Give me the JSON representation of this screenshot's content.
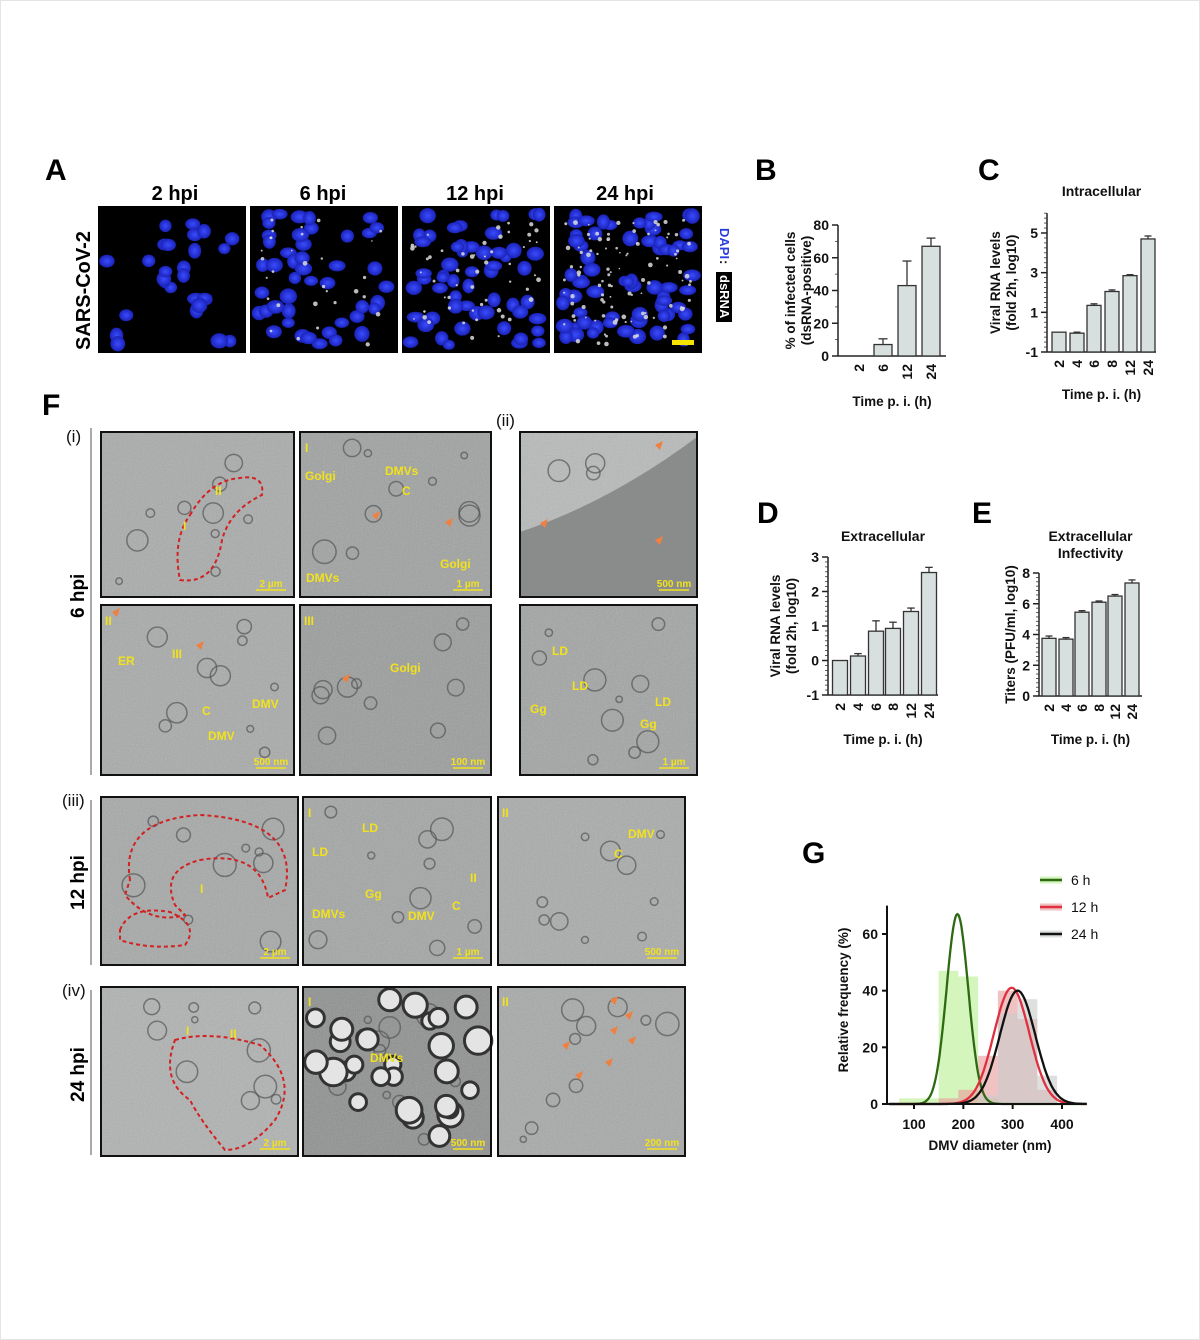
{
  "panel_labels": {
    "A": "A",
    "B": "B",
    "C": "C",
    "D": "D",
    "E": "E",
    "F": "F",
    "G": "G"
  },
  "panel_a": {
    "row_label": "SARS-CoV-2",
    "columns": [
      "2 hpi",
      "6 hpi",
      "12 hpi",
      "24 hpi"
    ],
    "stain_dapi": "DAPI",
    "stain_sep": " : ",
    "stain_dsrna": "dsRNA",
    "colors": {
      "dapi": "#1f2fd6",
      "dsrna": "#e8e8e8",
      "scalebar": "#f5e400"
    }
  },
  "panel_f": {
    "subpanels": [
      "(i)",
      "(ii)",
      "(iii)",
      "(iv)"
    ],
    "row_labels": [
      "6 hpi",
      "12 hpi",
      "24 hpi"
    ],
    "images": [
      {
        "id": "i-overview",
        "labels": [
          "II",
          "I"
        ],
        "scale": "2 µm"
      },
      {
        "id": "i-I",
        "labels": [
          "I",
          "Golgi",
          "DMVs",
          "C",
          "DMVs",
          "Golgi"
        ],
        "scale": "1 µm"
      },
      {
        "id": "ii-top",
        "labels": [],
        "scale": "500 nm"
      },
      {
        "id": "i-II",
        "labels": [
          "II",
          "ER",
          "III",
          "C",
          "DMV",
          "DMV"
        ],
        "scale": "500 nm"
      },
      {
        "id": "i-III",
        "labels": [
          "III",
          "Golgi"
        ],
        "scale": "100 nm"
      },
      {
        "id": "ii-bottom",
        "labels": [
          "LD",
          "LD",
          "Gg",
          "LD",
          "Gg"
        ],
        "scale": "1 µm"
      },
      {
        "id": "iii-overview",
        "labels": [
          "I"
        ],
        "scale": "2 µm"
      },
      {
        "id": "iii-I",
        "labels": [
          "I",
          "LD",
          "LD",
          "Gg",
          "DMVs",
          "DMV",
          "C",
          "II"
        ],
        "scale": "1 µm"
      },
      {
        "id": "iii-II",
        "labels": [
          "II",
          "DMV",
          "C"
        ],
        "scale": "500 nm"
      },
      {
        "id": "iv-overview",
        "labels": [
          "II",
          "I"
        ],
        "scale": "2 µm"
      },
      {
        "id": "iv-I",
        "labels": [
          "I",
          "DMVs"
        ],
        "scale": "500 nm"
      },
      {
        "id": "iv-II",
        "labels": [
          "II"
        ],
        "scale": "200 nm"
      }
    ],
    "colors": {
      "annotation": "#f2e21b",
      "arrowhead": "#f08040",
      "outline": "#d42020"
    }
  },
  "chart_data": [
    {
      "panel": "B",
      "type": "bar",
      "title": "",
      "xlabel": "Time p. i. (h)",
      "ylabel": "% of infected cells\n(dsRNA-positive)",
      "categories": [
        "2",
        "6",
        "12",
        "24"
      ],
      "values": [
        0,
        7,
        43,
        67
      ],
      "errors": [
        0,
        3.5,
        15,
        5
      ],
      "ylim": [
        0,
        80
      ],
      "yticks": [
        "0",
        "20",
        "40",
        "60",
        "80"
      ],
      "bar_color": "#d8dfdf"
    },
    {
      "panel": "C",
      "type": "bar",
      "title": "Intracellular",
      "xlabel": "Time p. i. (h)",
      "ylabel": "Viral RNA levels\n(fold 2h, log10)",
      "categories": [
        "2",
        "4",
        "6",
        "8",
        "12",
        "24"
      ],
      "values": [
        0,
        -0.05,
        1.35,
        2.05,
        2.85,
        4.7
      ],
      "errors": [
        0,
        0.05,
        0.08,
        0.08,
        0.05,
        0.15
      ],
      "ylim": [
        -1,
        6
      ],
      "yticks": [
        "-1",
        "1",
        "3",
        "5"
      ],
      "bar_color": "#d8dfdf"
    },
    {
      "panel": "D",
      "type": "bar",
      "title": "Extracellular",
      "xlabel": "Time p. i. (h)",
      "ylabel": "Viral RNA levels\n(fold 2h, log10)",
      "categories": [
        "2",
        "4",
        "6",
        "8",
        "12",
        "24"
      ],
      "values": [
        0,
        0.13,
        0.85,
        0.93,
        1.42,
        2.55
      ],
      "errors": [
        0,
        0.07,
        0.3,
        0.18,
        0.1,
        0.15
      ],
      "ylim": [
        -1,
        3
      ],
      "yticks": [
        "-1",
        "0",
        "1",
        "2",
        "3"
      ],
      "bar_color": "#d8dfdf"
    },
    {
      "panel": "E",
      "type": "bar",
      "title": "Extracellular\nInfectivity",
      "xlabel": "Time p. i. (h)",
      "ylabel": "Titers (PFU/ml, log10)",
      "categories": [
        "2",
        "4",
        "6",
        "8",
        "12",
        "24"
      ],
      "values": [
        3.75,
        3.7,
        5.45,
        6.1,
        6.5,
        7.35
      ],
      "errors": [
        0.15,
        0.1,
        0.1,
        0.08,
        0.1,
        0.2
      ],
      "ylim": [
        0,
        8
      ],
      "yticks": [
        "0",
        "2",
        "4",
        "6",
        "8"
      ],
      "bar_color": "#d8dfdf"
    },
    {
      "panel": "G",
      "type": "histogram+line",
      "title": "",
      "xlabel": "DMV diameter (nm)",
      "ylabel": "Relative frequency (%)",
      "xlim": [
        50,
        450
      ],
      "ylim": [
        0,
        70
      ],
      "xticks": [
        "100",
        "200",
        "300",
        "400"
      ],
      "yticks": [
        "0",
        "20",
        "40",
        "60"
      ],
      "legend_position": "top-right",
      "series": [
        {
          "name": "6 h",
          "color": "#2e6a12",
          "fill": "#b8f090",
          "bins": [
            [
              70,
              150,
              2
            ],
            [
              150,
              190,
              47
            ],
            [
              190,
              230,
              45
            ],
            [
              230,
              270,
              2
            ]
          ],
          "fit": {
            "mean": 188,
            "sd": 22,
            "peak": 67
          }
        },
        {
          "name": "12 h",
          "color": "#e03040",
          "fill": "#e89a9a",
          "bins": [
            [
              150,
              190,
              2
            ],
            [
              190,
              230,
              5
            ],
            [
              230,
              270,
              17
            ],
            [
              270,
              310,
              40
            ],
            [
              310,
              350,
              30
            ],
            [
              350,
              390,
              5
            ]
          ],
          "fit": {
            "mean": 298,
            "sd": 36,
            "peak": 41
          }
        },
        {
          "name": "24 h",
          "color": "#111111",
          "fill": "#c8cccc",
          "bins": [
            [
              230,
              270,
              3
            ],
            [
              270,
              310,
              32
            ],
            [
              310,
              350,
              37
            ],
            [
              350,
              390,
              10
            ]
          ],
          "fit": {
            "mean": 310,
            "sd": 36,
            "peak": 40
          }
        }
      ]
    }
  ]
}
